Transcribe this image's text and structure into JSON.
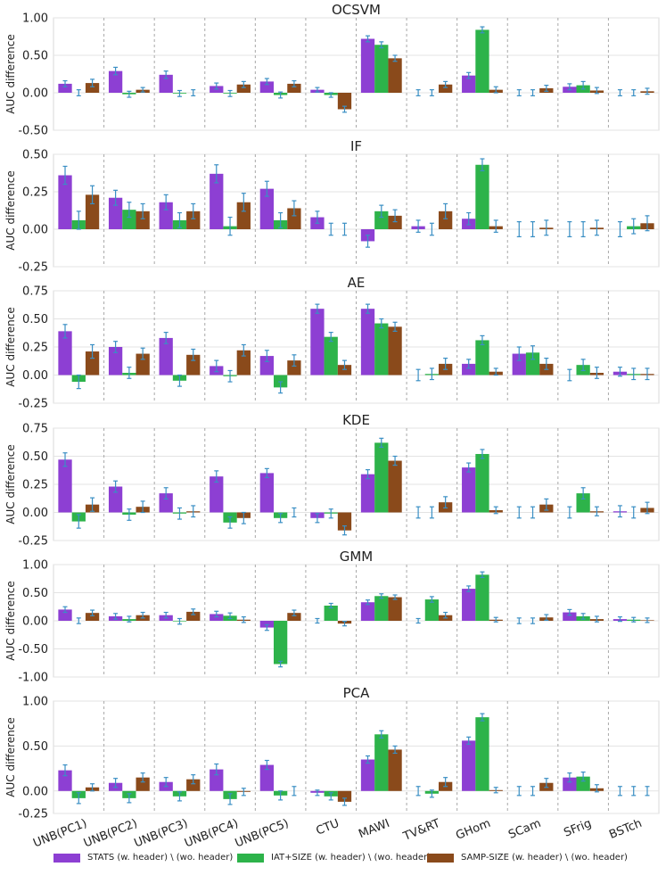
{
  "figure": {
    "categories": [
      "UNB(PC1)",
      "UNB(PC2)",
      "UNB(PC3)",
      "UNB(PC4)",
      "UNB(PC5)",
      "CTU",
      "MAWI",
      "TV&RT",
      "GHom",
      "SCam",
      "SFrig",
      "BSTch"
    ],
    "ylabel": "AUC difference",
    "colors": {
      "stats": "#8d3fd3",
      "iat": "#2db34a",
      "samp": "#8a4a1b",
      "error": "#3a8fc4"
    },
    "legend": [
      {
        "label": "STATS (w. header) \\ (wo. header)",
        "color": "#8d3fd3"
      },
      {
        "label": "IAT+SIZE (w. header) \\ (wo. header)",
        "color": "#2db34a"
      },
      {
        "label": "SAMP-SIZE (w. header) \\ (wo. header)",
        "color": "#8a4a1b"
      }
    ]
  },
  "chart_data": [
    {
      "type": "bar",
      "title": "OCSVM",
      "ylabel": "AUC difference",
      "ylim": [
        -0.5,
        1.0
      ],
      "yticks": [
        -0.5,
        0.0,
        0.5,
        1.0
      ],
      "ytick_labels": [
        "-0.50",
        "0.00",
        "0.50",
        "1.00"
      ],
      "series": [
        {
          "name": "STATS (w. header) \\ (wo. header)",
          "values": [
            0.12,
            0.29,
            0.24,
            0.09,
            0.15,
            0.04,
            0.72,
            0.0,
            0.23,
            0.0,
            0.08,
            0.0
          ],
          "errors": [
            0.04,
            0.05,
            0.05,
            0.04,
            0.04,
            0.03,
            0.04,
            0.04,
            0.04,
            0.04,
            0.04,
            0.04
          ]
        },
        {
          "name": "IAT+SIZE (w. header) \\ (wo. header)",
          "values": [
            0.0,
            -0.02,
            -0.01,
            -0.01,
            -0.03,
            -0.03,
            0.64,
            0.0,
            0.84,
            0.0,
            0.1,
            0.0
          ],
          "errors": [
            0.04,
            0.04,
            0.04,
            0.04,
            0.04,
            0.03,
            0.04,
            0.04,
            0.04,
            0.04,
            0.05,
            0.04
          ]
        },
        {
          "name": "SAMP-SIZE (w. header) \\ (wo. header)",
          "values": [
            0.13,
            0.04,
            0.0,
            0.11,
            0.12,
            -0.22,
            0.46,
            0.11,
            0.04,
            0.06,
            0.03,
            0.02
          ],
          "errors": [
            0.05,
            0.03,
            0.04,
            0.04,
            0.04,
            0.04,
            0.04,
            0.04,
            0.04,
            0.04,
            0.04,
            0.04
          ]
        }
      ]
    },
    {
      "type": "bar",
      "title": "IF",
      "ylabel": "AUC difference",
      "ylim": [
        -0.25,
        0.5
      ],
      "yticks": [
        -0.25,
        0.0,
        0.25,
        0.5
      ],
      "ytick_labels": [
        "-0.25",
        "0.00",
        "0.25",
        "0.50"
      ],
      "series": [
        {
          "name": "STATS (w. header) \\ (wo. header)",
          "values": [
            0.36,
            0.21,
            0.18,
            0.37,
            0.27,
            0.08,
            -0.08,
            0.02,
            0.07,
            0.0,
            0.0,
            0.0
          ],
          "errors": [
            0.06,
            0.05,
            0.05,
            0.06,
            0.05,
            0.04,
            0.04,
            0.04,
            0.04,
            0.05,
            0.05,
            0.05
          ]
        },
        {
          "name": "IAT+SIZE (w. header) \\ (wo. header)",
          "values": [
            0.06,
            0.13,
            0.06,
            0.02,
            0.06,
            0.0,
            0.12,
            0.0,
            0.43,
            0.0,
            0.0,
            0.02
          ],
          "errors": [
            0.06,
            0.05,
            0.05,
            0.06,
            0.05,
            0.04,
            0.04,
            0.04,
            0.04,
            0.05,
            0.05,
            0.05
          ]
        },
        {
          "name": "SAMP-SIZE (w. header) \\ (wo. header)",
          "values": [
            0.23,
            0.12,
            0.12,
            0.18,
            0.14,
            0.0,
            0.09,
            0.12,
            0.02,
            0.01,
            0.01,
            0.04
          ],
          "errors": [
            0.06,
            0.05,
            0.05,
            0.06,
            0.05,
            0.04,
            0.04,
            0.05,
            0.04,
            0.05,
            0.05,
            0.05
          ]
        }
      ]
    },
    {
      "type": "bar",
      "title": "AE",
      "ylabel": "AUC difference",
      "ylim": [
        -0.25,
        0.75
      ],
      "yticks": [
        -0.25,
        0.0,
        0.25,
        0.5,
        0.75
      ],
      "ytick_labels": [
        "-0.25",
        "0.00",
        "0.25",
        "0.50",
        "0.75"
      ],
      "series": [
        {
          "name": "STATS (w. header) \\ (wo. header)",
          "values": [
            0.39,
            0.25,
            0.33,
            0.08,
            0.17,
            0.59,
            0.59,
            0.0,
            0.1,
            0.19,
            0.0,
            0.03
          ],
          "errors": [
            0.06,
            0.05,
            0.05,
            0.05,
            0.05,
            0.04,
            0.04,
            0.05,
            0.04,
            0.06,
            0.05,
            0.04
          ]
        },
        {
          "name": "IAT+SIZE (w. header) \\ (wo. header)",
          "values": [
            -0.06,
            0.02,
            -0.05,
            -0.01,
            -0.11,
            0.34,
            0.46,
            0.01,
            0.31,
            0.2,
            0.09,
            0.01
          ],
          "errors": [
            0.06,
            0.05,
            0.05,
            0.05,
            0.05,
            0.04,
            0.04,
            0.05,
            0.04,
            0.06,
            0.05,
            0.05
          ]
        },
        {
          "name": "SAMP-SIZE (w. header) \\ (wo. header)",
          "values": [
            0.21,
            0.19,
            0.18,
            0.22,
            0.13,
            0.09,
            0.43,
            0.1,
            0.03,
            0.1,
            0.02,
            0.01
          ],
          "errors": [
            0.06,
            0.05,
            0.05,
            0.05,
            0.05,
            0.04,
            0.04,
            0.05,
            0.03,
            0.05,
            0.05,
            0.05
          ]
        }
      ]
    },
    {
      "type": "bar",
      "title": "KDE",
      "ylabel": "AUC difference",
      "ylim": [
        -0.25,
        0.75
      ],
      "yticks": [
        -0.25,
        0.0,
        0.25,
        0.5,
        0.75
      ],
      "ytick_labels": [
        "-0.25",
        "0.00",
        "0.25",
        "0.50",
        "0.75"
      ],
      "series": [
        {
          "name": "STATS (w. header) \\ (wo. header)",
          "values": [
            0.47,
            0.23,
            0.17,
            0.32,
            0.35,
            -0.05,
            0.34,
            0.0,
            0.4,
            0.0,
            0.0,
            0.01
          ],
          "errors": [
            0.06,
            0.05,
            0.05,
            0.05,
            0.04,
            0.04,
            0.04,
            0.05,
            0.04,
            0.05,
            0.05,
            0.05
          ]
        },
        {
          "name": "IAT+SIZE (w. header) \\ (wo. header)",
          "values": [
            -0.08,
            -0.02,
            -0.01,
            -0.09,
            -0.05,
            -0.01,
            0.62,
            0.0,
            0.52,
            0.0,
            0.17,
            0.0
          ],
          "errors": [
            0.06,
            0.05,
            0.05,
            0.05,
            0.04,
            0.04,
            0.04,
            0.05,
            0.04,
            0.05,
            0.05,
            0.05
          ]
        },
        {
          "name": "SAMP-SIZE (w. header) \\ (wo. header)",
          "values": [
            0.07,
            0.05,
            0.01,
            -0.05,
            0.0,
            -0.16,
            0.46,
            0.09,
            0.02,
            0.07,
            0.01,
            0.04
          ],
          "errors": [
            0.06,
            0.05,
            0.05,
            0.05,
            0.04,
            0.04,
            0.04,
            0.05,
            0.03,
            0.05,
            0.04,
            0.05
          ]
        }
      ]
    },
    {
      "type": "bar",
      "title": "GMM",
      "ylabel": "AUC difference",
      "ylim": [
        -1.0,
        1.0
      ],
      "yticks": [
        -1.0,
        -0.5,
        0.0,
        0.5,
        1.0
      ],
      "ytick_labels": [
        "-1.00",
        "-0.50",
        "0.00",
        "0.50",
        "1.00"
      ],
      "series": [
        {
          "name": "STATS (w. header) \\ (wo. header)",
          "values": [
            0.2,
            0.08,
            0.1,
            0.12,
            -0.12,
            0.0,
            0.33,
            0.0,
            0.57,
            0.0,
            0.15,
            0.03
          ],
          "errors": [
            0.05,
            0.05,
            0.05,
            0.05,
            0.05,
            0.04,
            0.04,
            0.04,
            0.05,
            0.05,
            0.05,
            0.04
          ]
        },
        {
          "name": "IAT+SIZE (w. header) \\ (wo. header)",
          "values": [
            0.0,
            0.03,
            -0.01,
            0.09,
            -0.77,
            0.27,
            0.44,
            0.38,
            0.82,
            0.0,
            0.08,
            0.02
          ],
          "errors": [
            0.05,
            0.05,
            0.05,
            0.05,
            0.05,
            0.04,
            0.04,
            0.05,
            0.05,
            0.05,
            0.05,
            0.04
          ]
        },
        {
          "name": "SAMP-SIZE (w. header) \\ (wo. header)",
          "values": [
            0.14,
            0.1,
            0.16,
            0.02,
            0.14,
            -0.05,
            0.42,
            0.1,
            0.02,
            0.06,
            0.03,
            0.01
          ],
          "errors": [
            0.05,
            0.05,
            0.05,
            0.05,
            0.05,
            0.04,
            0.04,
            0.05,
            0.04,
            0.05,
            0.05,
            0.04
          ]
        }
      ]
    },
    {
      "type": "bar",
      "title": "PCA",
      "ylabel": "AUC difference",
      "ylim": [
        -0.25,
        1.0
      ],
      "yticks": [
        -0.25,
        0.0,
        0.5,
        1.0
      ],
      "ytick_labels": [
        "-0.25",
        "0.00",
        "0.50",
        "1.00"
      ],
      "series": [
        {
          "name": "STATS (w. header) \\ (wo. header)",
          "values": [
            0.23,
            0.09,
            0.1,
            0.24,
            0.29,
            -0.02,
            0.35,
            0.0,
            0.56,
            0.0,
            0.15,
            0.0
          ],
          "errors": [
            0.06,
            0.05,
            0.05,
            0.06,
            0.05,
            0.03,
            0.04,
            0.05,
            0.04,
            0.05,
            0.05,
            0.05
          ]
        },
        {
          "name": "IAT+SIZE (w. header) \\ (wo. header)",
          "values": [
            -0.08,
            -0.08,
            -0.06,
            -0.09,
            -0.05,
            -0.06,
            0.63,
            -0.03,
            0.82,
            0.0,
            0.16,
            0.0
          ],
          "errors": [
            0.06,
            0.05,
            0.05,
            0.06,
            0.05,
            0.04,
            0.04,
            0.04,
            0.04,
            0.05,
            0.05,
            0.05
          ]
        },
        {
          "name": "SAMP-SIZE (w. header) \\ (wo. header)",
          "values": [
            0.04,
            0.15,
            0.13,
            -0.01,
            0.0,
            -0.12,
            0.46,
            0.1,
            0.01,
            0.09,
            0.03,
            0.0
          ],
          "errors": [
            0.04,
            0.05,
            0.05,
            0.04,
            0.05,
            0.04,
            0.04,
            0.05,
            0.03,
            0.05,
            0.04,
            0.05
          ]
        }
      ]
    }
  ]
}
